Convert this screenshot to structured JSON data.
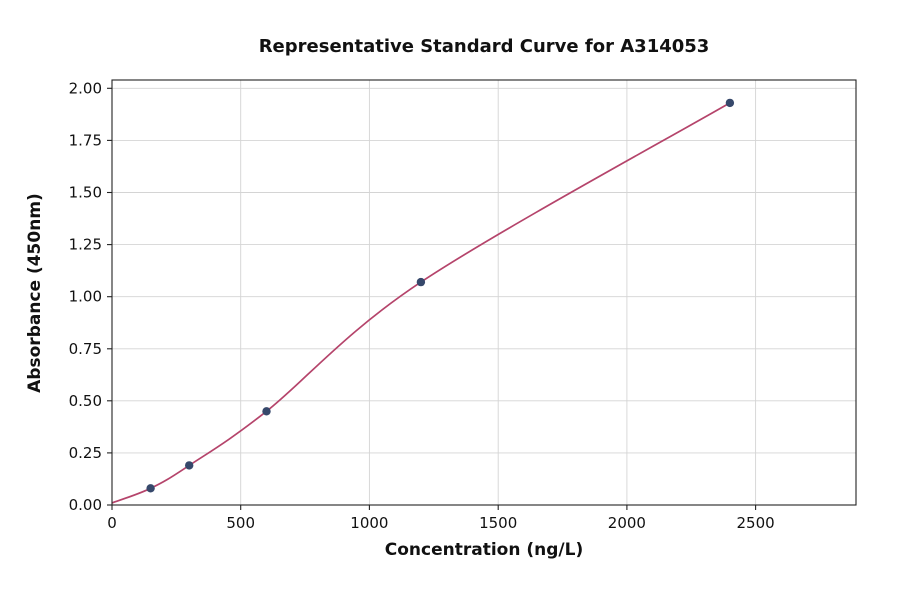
{
  "chart_data": {
    "type": "scatter",
    "title": "Representative Standard Curve for A314053",
    "xlabel": "Concentration (ng/L)",
    "ylabel": "Absorbance (450nm)",
    "points": {
      "x": [
        150,
        300,
        600,
        1200,
        2400
      ],
      "y": [
        0.08,
        0.19,
        0.45,
        1.07,
        1.93
      ]
    },
    "fit_curve": {
      "x": [
        0,
        150,
        300,
        600,
        1200,
        2400
      ],
      "y": [
        0.01,
        0.08,
        0.19,
        0.45,
        1.07,
        1.93
      ]
    },
    "xlim": [
      0,
      2890
    ],
    "ylim": [
      0,
      2.04
    ],
    "xticks": [
      "0",
      "500",
      "1000",
      "1500",
      "2000",
      "2500"
    ],
    "yticks": [
      "0.00",
      "0.25",
      "0.50",
      "0.75",
      "1.00",
      "1.25",
      "1.50",
      "1.75",
      "2.00"
    ],
    "grid": true,
    "legend": null,
    "colors": {
      "curve": "#b5446b",
      "points": "#36486b",
      "grid": "#d4d4d4",
      "axis": "#222222",
      "background": "#ffffff"
    }
  }
}
